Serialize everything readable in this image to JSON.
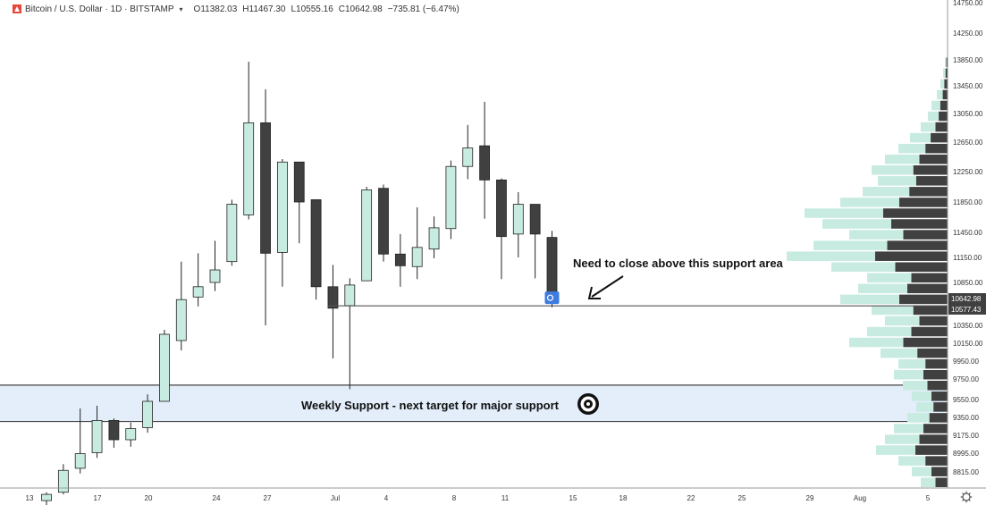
{
  "header": {
    "symbol": "Bitcoin / U.S. Dollar · 1D · BITSTAMP",
    "open_label": "O",
    "open": "11382.03",
    "high_label": "H",
    "high": "11467.30",
    "low_label": "L",
    "low": "10555.16",
    "close_label": "C",
    "close": "10642.98",
    "change": "−735.81 (−6.47%)"
  },
  "annotations": {
    "support_note": "Need to close above this support area",
    "weekly_support": "Weekly Support - next target for major support"
  },
  "colors": {
    "up": "#c8ebe1",
    "down": "#404040",
    "outline": "#222222",
    "zone_fill": "#e3eefa",
    "profile_up": "#c8ebe1",
    "profile_down": "#404040",
    "price_tag_1": "#404040",
    "price_tag_2": "#404040",
    "logo": "#e8463b"
  },
  "chart_data": {
    "type": "candlestick",
    "price_axis_ticks": [
      "14750.00",
      "14250.00",
      "13850.00",
      "13450.00",
      "13050.00",
      "12650.00",
      "12250.00",
      "11850.00",
      "11450.00",
      "11150.00",
      "10850.00",
      "10350.00",
      "10150.00",
      "9950.00",
      "9750.00",
      "9550.00",
      "9350.00",
      "9175.00",
      "8995.00",
      "8815.00"
    ],
    "price_tags": [
      "10642.98",
      "10577.43"
    ],
    "time_axis_ticks": [
      "13",
      "17",
      "20",
      "24",
      "27",
      "Jul",
      "4",
      "8",
      "11",
      "15",
      "18",
      "22",
      "25",
      "29",
      "Aug",
      "5"
    ],
    "support_line": 10577.43,
    "weekly_support_zone": [
      9310,
      9690
    ],
    "candles": [
      {
        "o": 8540,
        "h": 8620,
        "l": 8470,
        "c": 8600
      },
      {
        "o": 8620,
        "h": 8890,
        "l": 8600,
        "c": 8830
      },
      {
        "o": 8850,
        "h": 9450,
        "l": 8800,
        "c": 8990
      },
      {
        "o": 9000,
        "h": 9480,
        "l": 8950,
        "c": 9320
      },
      {
        "o": 9320,
        "h": 9340,
        "l": 9050,
        "c": 9130
      },
      {
        "o": 9130,
        "h": 9300,
        "l": 9060,
        "c": 9240
      },
      {
        "o": 9250,
        "h": 9600,
        "l": 9200,
        "c": 9530
      },
      {
        "o": 9530,
        "h": 10300,
        "l": 9530,
        "c": 10250
      },
      {
        "o": 10180,
        "h": 11100,
        "l": 10070,
        "c": 10650
      },
      {
        "o": 10680,
        "h": 11200,
        "l": 10570,
        "c": 10800
      },
      {
        "o": 10850,
        "h": 11350,
        "l": 10750,
        "c": 11000
      },
      {
        "o": 11100,
        "h": 11880,
        "l": 11050,
        "c": 11820
      },
      {
        "o": 11680,
        "h": 13820,
        "l": 11620,
        "c": 12920
      },
      {
        "o": 12920,
        "h": 13400,
        "l": 10350,
        "c": 11200
      },
      {
        "o": 11210,
        "h": 12420,
        "l": 10800,
        "c": 12380
      },
      {
        "o": 12380,
        "h": 12380,
        "l": 11320,
        "c": 11850
      },
      {
        "o": 11880,
        "h": 11880,
        "l": 10650,
        "c": 10800
      },
      {
        "o": 10800,
        "h": 11060,
        "l": 9980,
        "c": 10550
      },
      {
        "o": 10580,
        "h": 10900,
        "l": 9650,
        "c": 10820
      },
      {
        "o": 10870,
        "h": 12050,
        "l": 10870,
        "c": 12010
      },
      {
        "o": 12030,
        "h": 12080,
        "l": 11100,
        "c": 11190
      },
      {
        "o": 11190,
        "h": 11430,
        "l": 10800,
        "c": 11050
      },
      {
        "o": 11040,
        "h": 11780,
        "l": 10890,
        "c": 11270
      },
      {
        "o": 11250,
        "h": 11660,
        "l": 11140,
        "c": 11510
      },
      {
        "o": 11500,
        "h": 12400,
        "l": 11370,
        "c": 12320
      },
      {
        "o": 12320,
        "h": 12890,
        "l": 12150,
        "c": 12570
      },
      {
        "o": 12600,
        "h": 13220,
        "l": 11630,
        "c": 12140
      },
      {
        "o": 12140,
        "h": 12160,
        "l": 10890,
        "c": 11400
      },
      {
        "o": 11430,
        "h": 11980,
        "l": 11150,
        "c": 11820
      },
      {
        "o": 11820,
        "h": 11820,
        "l": 10900,
        "c": 11430
      },
      {
        "o": 11390,
        "h": 11470,
        "l": 10560,
        "c": 10640
      }
    ]
  }
}
